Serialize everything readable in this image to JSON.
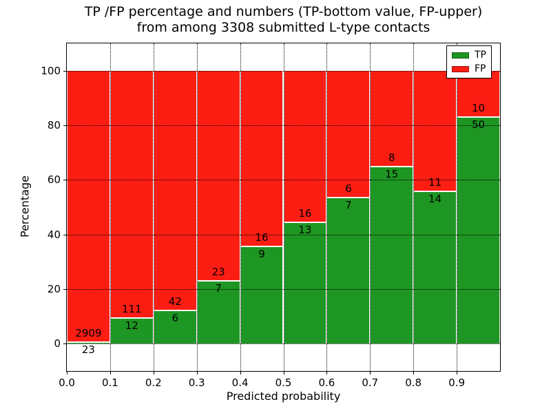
{
  "title": {
    "line1": "TP /FP percentage and numbers (TP-bottom value, FP-upper)",
    "line2": "from among 3308 submitted L-type contacts"
  },
  "chart_data": {
    "type": "bar",
    "stacked": true,
    "normalized_to_percent": true,
    "title": "TP /FP percentage and numbers (TP-bottom value, FP-upper) from among 3308 submitted L-type contacts",
    "xlabel": "Predicted probability",
    "ylabel": "Percentage",
    "xlim": [
      0.0,
      1.0
    ],
    "ylim": [
      -10,
      110
    ],
    "bin_width": 0.1,
    "bin_starts": [
      0.0,
      0.1,
      0.2,
      0.3,
      0.4,
      0.5,
      0.6,
      0.7,
      0.8,
      0.9
    ],
    "xtick_labels": [
      "0.0",
      "0.1",
      "0.2",
      "0.3",
      "0.4",
      "0.5",
      "0.6",
      "0.7",
      "0.8",
      "0.9"
    ],
    "ytick_values": [
      0,
      20,
      40,
      60,
      80,
      100
    ],
    "series": [
      {
        "name": "TP",
        "color": "#1e9623",
        "counts": [
          23,
          12,
          6,
          7,
          9,
          13,
          7,
          15,
          14,
          50
        ]
      },
      {
        "name": "FP",
        "color": "#fc1d13",
        "counts": [
          2909,
          111,
          42,
          23,
          16,
          16,
          6,
          8,
          11,
          10
        ]
      }
    ],
    "tp_percent_per_bin": [
      0.78,
      9.76,
      12.5,
      23.33,
      36.0,
      44.83,
      53.85,
      65.22,
      56.0,
      83.33
    ],
    "grid": true,
    "grid_style": "dotted",
    "legend": {
      "position": "upper right",
      "entries": [
        "TP",
        "FP"
      ]
    }
  },
  "colors": {
    "tp": "#1e9623",
    "fp": "#fc1d13",
    "grid": "#000000",
    "frame": "#000000",
    "background": "#ffffff"
  }
}
